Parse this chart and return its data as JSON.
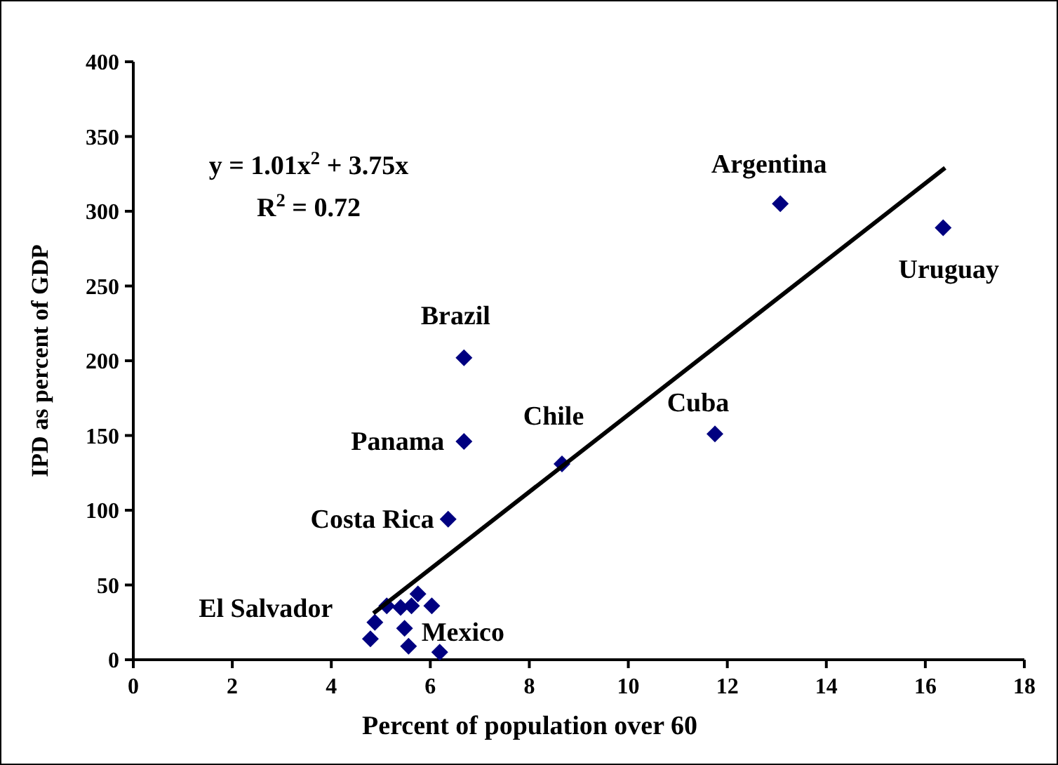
{
  "chart_data": {
    "type": "scatter",
    "xlabel": "Percent of population over 60",
    "ylabel": "IPD as percent of GDP",
    "xlim": [
      0,
      18
    ],
    "xticks": [
      0,
      2,
      4,
      6,
      8,
      10,
      12,
      14,
      16,
      18
    ],
    "ylim": [
      0,
      400
    ],
    "yticks": [
      0,
      50,
      100,
      150,
      200,
      250,
      300,
      350,
      400
    ],
    "grid": false,
    "marker": "diamond",
    "series": [
      {
        "color": "#000080",
        "x": [
          13.07,
          16.36,
          11.75,
          8.66,
          6.68,
          6.68,
          6.36,
          6.19,
          4.79,
          4.88,
          5.12,
          5.4,
          5.48,
          5.56,
          5.62,
          5.75,
          6.03
        ],
        "values": [
          305,
          289,
          151,
          131,
          202,
          146,
          94,
          5,
          14,
          25,
          36,
          35,
          21,
          9,
          36,
          44,
          36
        ]
      },
      {
        "type": "line",
        "color": "#000000",
        "marker": "none",
        "line_style": "solid",
        "x": [
          4.85,
          16.4
        ],
        "values": [
          31,
          329
        ]
      }
    ],
    "annotations": [
      "y = 1.01x$^{2}$ + 3.75x",
      "R$^{2}$ = 0.72",
      {
        "text": "Argentina",
        "x": 13.07,
        "y": 305
      },
      {
        "text": "Uruguay",
        "x": 16.36,
        "y": 289
      },
      {
        "text": "Cuba",
        "x": 11.75,
        "y": 151
      },
      {
        "text": "Chile",
        "x": 8.66,
        "y": 131
      },
      {
        "text": "Brazil",
        "x": 6.68,
        "y": 202
      },
      {
        "text": "Panama",
        "x": 6.68,
        "y": 146
      },
      {
        "text": "Costa Rica",
        "x": 6.36,
        "y": 94
      },
      {
        "text": "Mexico",
        "x": 6.19,
        "y": 5
      },
      {
        "text": "El Salvador",
        "x": 4.88,
        "y": 25
      }
    ]
  }
}
